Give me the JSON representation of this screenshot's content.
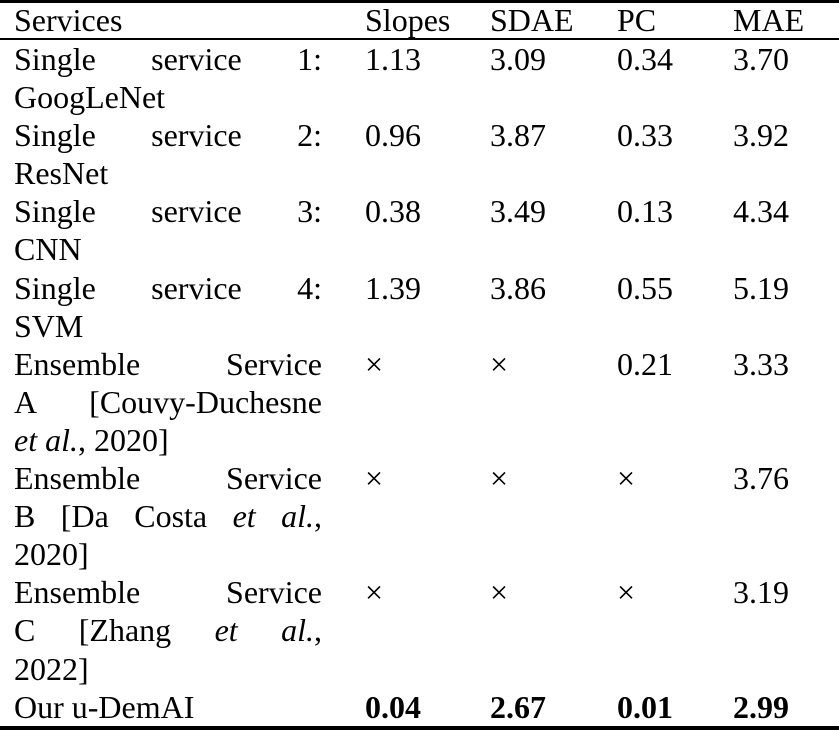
{
  "table": {
    "header": {
      "services": "Services",
      "slopes": "Slopes",
      "sdae": "SDAE",
      "pc": "PC",
      "mae": "MAE"
    },
    "not_available_symbol": "×",
    "text_color": "#000000",
    "background_color": "#ffffff",
    "rows": [
      {
        "service_lines": [
          {
            "justify": true,
            "segments": [
              {
                "text": "Single service 1:"
              }
            ]
          },
          {
            "justify": false,
            "segments": [
              {
                "text": "GoogLeNet"
              }
            ]
          }
        ],
        "slopes": "1.13",
        "sdae": "3.09",
        "pc": "0.34",
        "mae": "3.70",
        "bold": false
      },
      {
        "service_lines": [
          {
            "justify": true,
            "segments": [
              {
                "text": "Single service 2:"
              }
            ]
          },
          {
            "justify": false,
            "segments": [
              {
                "text": "ResNet"
              }
            ]
          }
        ],
        "slopes": "0.96",
        "sdae": "3.87",
        "pc": "0.33",
        "mae": "3.92",
        "bold": false
      },
      {
        "service_lines": [
          {
            "justify": true,
            "segments": [
              {
                "text": "Single service 3:"
              }
            ]
          },
          {
            "justify": false,
            "segments": [
              {
                "text": "CNN"
              }
            ]
          }
        ],
        "slopes": "0.38",
        "sdae": "3.49",
        "pc": "0.13",
        "mae": "4.34",
        "bold": false
      },
      {
        "service_lines": [
          {
            "justify": true,
            "segments": [
              {
                "text": "Single service 4:"
              }
            ]
          },
          {
            "justify": false,
            "segments": [
              {
                "text": "SVM"
              }
            ]
          }
        ],
        "slopes": "1.39",
        "sdae": "3.86",
        "pc": "0.55",
        "mae": "5.19",
        "bold": false
      },
      {
        "service_lines": [
          {
            "justify": true,
            "segments": [
              {
                "text": "Ensemble Service"
              }
            ]
          },
          {
            "justify": true,
            "segments": [
              {
                "text": "A [Couvy-Duchesne"
              }
            ]
          },
          {
            "justify": false,
            "segments": [
              {
                "text": "et al.",
                "italic": true
              },
              {
                "text": ", 2020]"
              }
            ]
          }
        ],
        "slopes": "×",
        "sdae": "×",
        "pc": "0.21",
        "mae": "3.33",
        "bold": false
      },
      {
        "service_lines": [
          {
            "justify": true,
            "segments": [
              {
                "text": "Ensemble Service"
              }
            ]
          },
          {
            "justify": true,
            "segments": [
              {
                "text": "B [Da Costa "
              },
              {
                "text": "et al.",
                "italic": true
              },
              {
                "text": ","
              }
            ]
          },
          {
            "justify": false,
            "segments": [
              {
                "text": "2020]"
              }
            ]
          }
        ],
        "slopes": "×",
        "sdae": "×",
        "pc": "×",
        "mae": "3.76",
        "bold": false
      },
      {
        "service_lines": [
          {
            "justify": true,
            "segments": [
              {
                "text": "Ensemble Service"
              }
            ]
          },
          {
            "justify": true,
            "segments": [
              {
                "text": "C [Zhang "
              },
              {
                "text": "et al.",
                "italic": true
              },
              {
                "text": ","
              }
            ]
          },
          {
            "justify": false,
            "segments": [
              {
                "text": "2022]"
              }
            ]
          }
        ],
        "slopes": "×",
        "sdae": "×",
        "pc": "×",
        "mae": "3.19",
        "bold": false
      },
      {
        "service_lines": [
          {
            "justify": false,
            "segments": [
              {
                "text": "Our u-DemAI"
              }
            ]
          }
        ],
        "slopes": "0.04",
        "sdae": "2.67",
        "pc": "0.01",
        "mae": "2.99",
        "bold": true
      }
    ]
  }
}
